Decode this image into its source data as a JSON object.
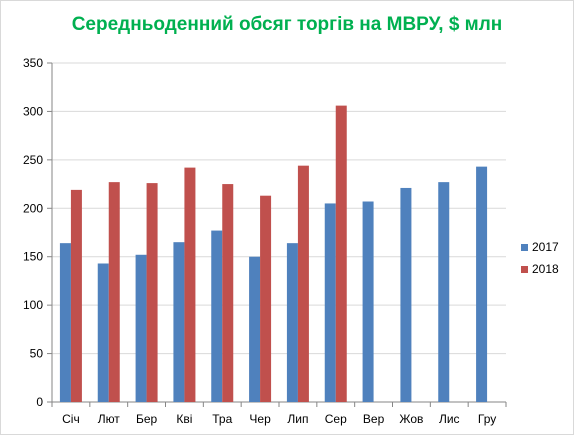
{
  "chart_data": {
    "type": "bar",
    "title": "Середньоденний обсяг торгів на МВРУ, $ млн",
    "xlabel": "",
    "ylabel": "",
    "categories": [
      "Січ",
      "Лют",
      "Бер",
      "Кві",
      "Тра",
      "Чер",
      "Лип",
      "Сер",
      "Вер",
      "Жов",
      "Лис",
      "Гру"
    ],
    "series": [
      {
        "name": "2017",
        "color": "#4f81bd",
        "values": [
          164,
          143,
          152,
          165,
          177,
          150,
          164,
          205,
          207,
          221,
          227,
          243
        ]
      },
      {
        "name": "2018",
        "color": "#c0504d",
        "values": [
          219,
          227,
          226,
          242,
          225,
          213,
          244,
          306,
          null,
          null,
          null,
          null
        ]
      }
    ],
    "ylim": [
      0,
      350
    ],
    "yticks": [
      0,
      50,
      100,
      150,
      200,
      250,
      300,
      350
    ],
    "grid": true,
    "legend": "right"
  }
}
